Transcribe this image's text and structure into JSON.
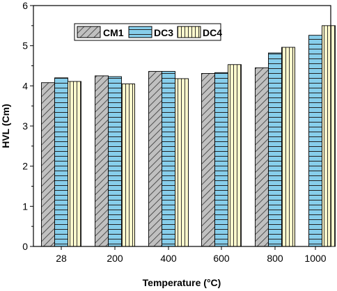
{
  "chart_data": {
    "type": "bar",
    "xlabel": "Temperature (°C)",
    "ylabel": "HVL (Cm)",
    "categories": [
      "28",
      "200",
      "400",
      "600",
      "800",
      "1000"
    ],
    "ylim": [
      0,
      6
    ],
    "yticks": [
      "0",
      "1",
      "2",
      "3",
      "4",
      "5",
      "6"
    ],
    "grid": false,
    "legend_position": "top-left",
    "series": [
      {
        "name": "CM1",
        "values": [
          4.08,
          4.25,
          4.36,
          4.31,
          4.45,
          null
        ],
        "color": "#c0c0c0",
        "pattern": "diagonal-hatch"
      },
      {
        "name": "DC3",
        "values": [
          4.2,
          4.23,
          4.36,
          4.33,
          4.82,
          5.26
        ],
        "color": "#87ceeb",
        "pattern": "horizontal-lines"
      },
      {
        "name": "DC4",
        "values": [
          4.11,
          4.05,
          4.18,
          4.53,
          4.96,
          5.5
        ],
        "color": "#fffacd",
        "pattern": "vertical-lines"
      }
    ]
  }
}
